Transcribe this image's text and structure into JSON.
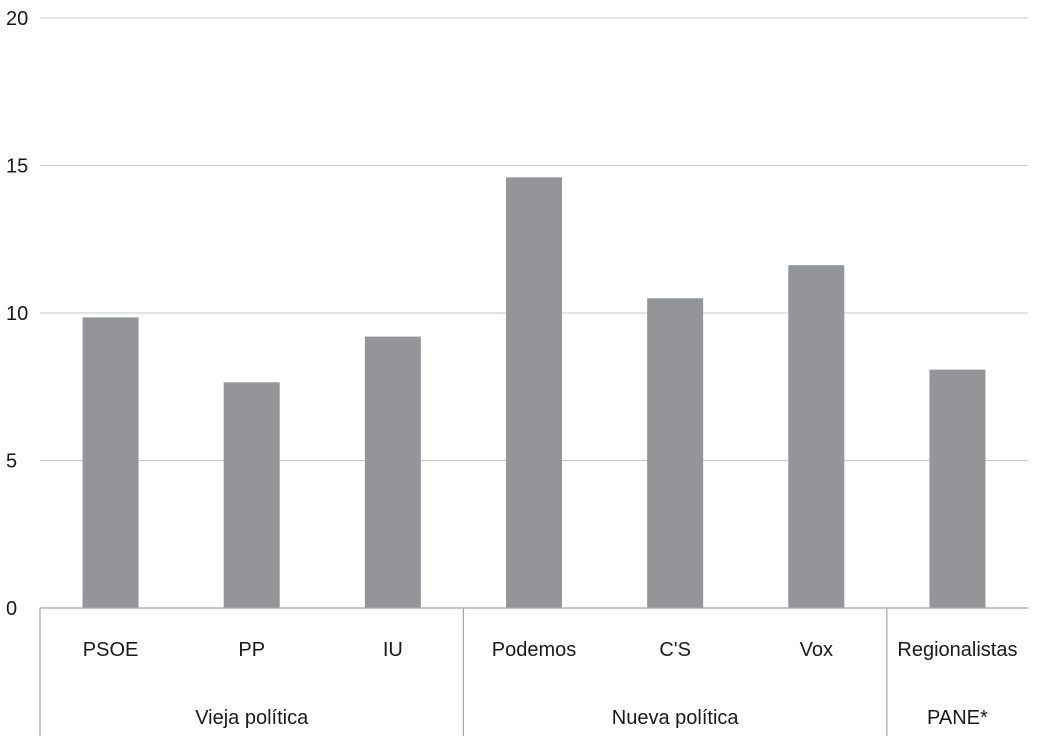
{
  "chart_data": {
    "type": "bar",
    "title": "",
    "xlabel": "",
    "ylabel": "",
    "ylim": [
      0,
      20
    ],
    "yticks": [
      0,
      5,
      10,
      15,
      20
    ],
    "grid": true,
    "legend": "none",
    "categories": [
      "PSOE",
      "PP",
      "IU",
      "Podemos",
      "C'S",
      "Vox",
      "Regionalistas"
    ],
    "values": [
      9.85,
      7.65,
      9.2,
      14.6,
      10.5,
      11.62,
      8.08
    ],
    "groups": [
      {
        "label": "Vieja política",
        "count": 3
      },
      {
        "label": "Nueva política",
        "count": 3
      },
      {
        "label": "PANE*",
        "count": 1
      }
    ],
    "colors": {
      "bar": "#939598",
      "grid": "#c8c8c8",
      "axis": "#a6a6a6"
    }
  }
}
